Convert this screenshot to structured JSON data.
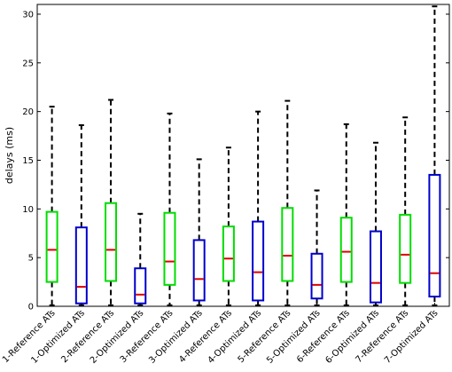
{
  "chart_data": {
    "type": "boxplot",
    "title": "",
    "xlabel": "",
    "ylabel": "delays (ms)",
    "ylim": [
      0,
      31
    ],
    "yticks": [
      0,
      5,
      10,
      15,
      20,
      25,
      30
    ],
    "grid": false,
    "legend": "none",
    "categories": [
      "1-Reference ATs",
      "1-Optimized ATs",
      "2-Reference ATs",
      "2-Optimized ATs",
      "3-Reference ATs",
      "3-Optimized ATs",
      "4-Reference ATs",
      "4-Optimized ATs",
      "5-Reference ATs",
      "5-Optimized ATs",
      "6-Reference ATs",
      "6-Optimized ATs",
      "7-Reference ATs",
      "7-Optimized ATs"
    ],
    "colors": {
      "reference": "#00dd00",
      "optimized": "#0000cc",
      "median": "#dd0000",
      "whisker": "#000000"
    },
    "boxes": [
      {
        "group": "reference",
        "min": 0.1,
        "q1": 2.5,
        "median": 5.8,
        "q3": 9.7,
        "max": 20.5
      },
      {
        "group": "optimized",
        "min": 0.1,
        "q1": 0.3,
        "median": 2.0,
        "q3": 8.1,
        "max": 18.6
      },
      {
        "group": "reference",
        "min": 0.1,
        "q1": 2.6,
        "median": 5.8,
        "q3": 10.6,
        "max": 21.2
      },
      {
        "group": "optimized",
        "min": 0.1,
        "q1": 0.3,
        "median": 1.2,
        "q3": 3.9,
        "max": 9.5
      },
      {
        "group": "reference",
        "min": 0.1,
        "q1": 2.2,
        "median": 4.6,
        "q3": 9.6,
        "max": 19.8
      },
      {
        "group": "optimized",
        "min": 0.1,
        "q1": 0.6,
        "median": 2.8,
        "q3": 6.8,
        "max": 15.1
      },
      {
        "group": "reference",
        "min": 0.1,
        "q1": 2.6,
        "median": 4.9,
        "q3": 8.2,
        "max": 16.3
      },
      {
        "group": "optimized",
        "min": 0.1,
        "q1": 0.6,
        "median": 3.5,
        "q3": 8.7,
        "max": 20.0
      },
      {
        "group": "reference",
        "min": 0.1,
        "q1": 2.6,
        "median": 5.2,
        "q3": 10.1,
        "max": 21.1
      },
      {
        "group": "optimized",
        "min": 0.1,
        "q1": 0.8,
        "median": 2.2,
        "q3": 5.4,
        "max": 11.9
      },
      {
        "group": "reference",
        "min": 0.1,
        "q1": 2.5,
        "median": 5.6,
        "q3": 9.1,
        "max": 18.7
      },
      {
        "group": "optimized",
        "min": 0.1,
        "q1": 0.4,
        "median": 2.4,
        "q3": 7.7,
        "max": 16.8
      },
      {
        "group": "reference",
        "min": 0.1,
        "q1": 2.4,
        "median": 5.3,
        "q3": 9.4,
        "max": 19.4
      },
      {
        "group": "optimized",
        "min": 0.1,
        "q1": 1.0,
        "median": 3.4,
        "q3": 13.5,
        "max": 30.8
      }
    ]
  }
}
